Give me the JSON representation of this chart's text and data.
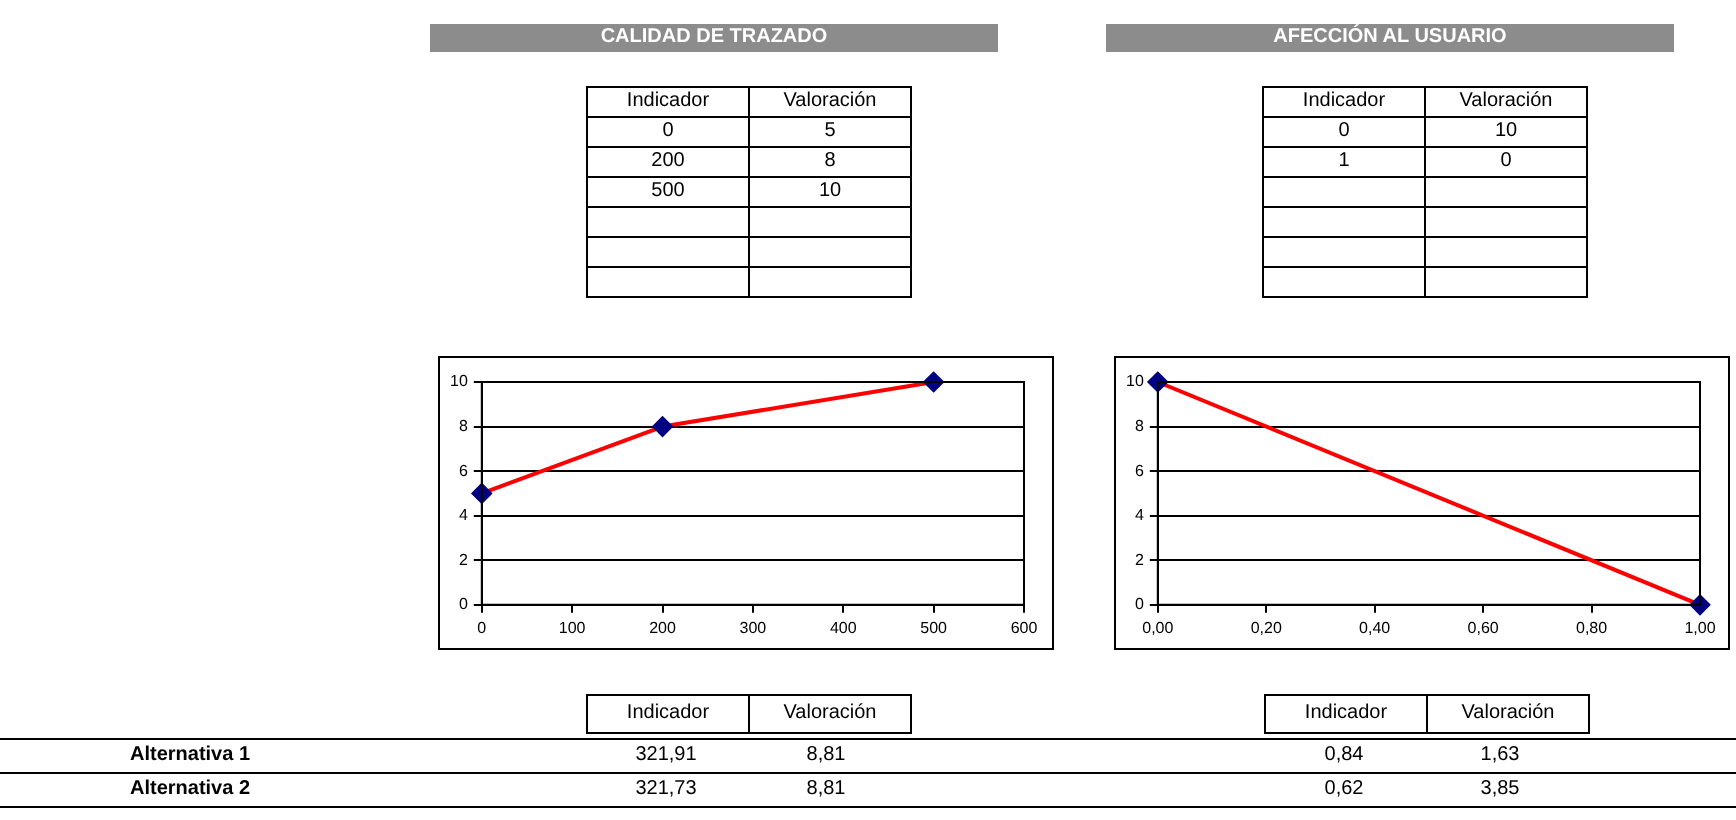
{
  "chart_data": [
    {
      "type": "other",
      "title": "CALIDAD DE TRAZADO",
      "annotations": [
        "Indicador",
        "Valoración",
        "0",
        "5",
        "200",
        "8",
        "500",
        "10"
      ]
    },
    {
      "type": "other",
      "title": "AFECCIÓN AL USUARIO",
      "annotations": [
        "Indicador",
        "Valoración",
        "0",
        "10",
        "1",
        "0"
      ]
    },
    {
      "type": "line",
      "x": [
        0,
        200,
        500
      ],
      "series": [
        {
          "color": "#ff0000",
          "values": [
            5,
            8,
            10
          ]
        }
      ],
      "marker": "diamond",
      "xlim": [
        0,
        600
      ],
      "xticks": [
        0,
        100,
        200,
        300,
        400,
        500,
        600
      ],
      "ylim": [
        0,
        10
      ],
      "yticks": [
        0,
        2,
        4,
        6,
        8,
        10
      ],
      "grid": "y",
      "legend": false
    },
    {
      "type": "line",
      "x": [
        0,
        1
      ],
      "series": [
        {
          "color": "#ff0000",
          "values": [
            10,
            0
          ]
        }
      ],
      "marker": "diamond",
      "xlim": [
        0,
        1
      ],
      "xticks": [
        {
          "value": 0,
          "label": "0,00"
        },
        {
          "value": 0.2,
          "label": "0,20"
        },
        {
          "value": 0.4,
          "label": "0,40"
        },
        {
          "value": 0.6,
          "label": "0,60"
        },
        {
          "value": 0.8,
          "label": "0,80"
        },
        {
          "value": 1,
          "label": "1,00"
        }
      ],
      "ylim": [
        0,
        10
      ],
      "yticks": [
        0,
        2,
        4,
        6,
        8,
        10
      ],
      "grid": "y",
      "legend": false
    },
    {
      "type": "other",
      "annotations": [
        "Alternativa 1",
        "Alternativa 2",
        "Indicador",
        "Valoración",
        "Indicador",
        "Valoración",
        "321,91",
        "8,81",
        "0,84",
        "1,63",
        "321,73",
        "8,81",
        "0,62",
        "3,85"
      ]
    }
  ]
}
